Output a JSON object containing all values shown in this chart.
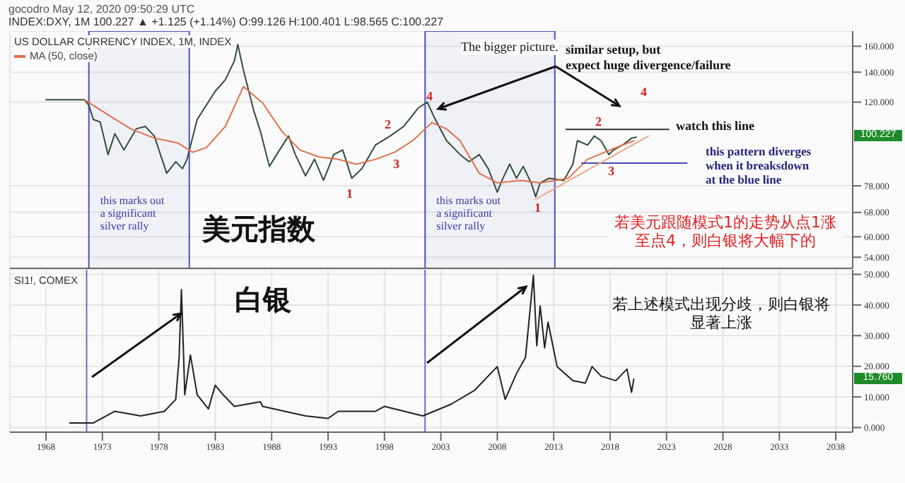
{
  "chart_data": [
    {
      "type": "line",
      "title": "US DOLLAR CURRENCY INDEX, 1M, INDEX",
      "log": "y",
      "grid": true,
      "legend": "top left",
      "tick_labels": "y",
      "xlim": [
        1964.8,
        2039.5
      ],
      "xticks": [
        1968,
        1973,
        1978,
        1983,
        1988,
        1993,
        1998,
        2003,
        2008,
        2013,
        2018,
        2023,
        2028,
        2033,
        2038
      ],
      "ylim": [
        51,
        173
      ],
      "yticks": [
        {
          "value": 54,
          "label": "54.000"
        },
        {
          "value": 60,
          "label": "60.000"
        },
        {
          "value": 68,
          "label": "68.000"
        },
        {
          "value": 78,
          "label": "78.000"
        },
        {
          "value": 120,
          "label": "120.000"
        },
        {
          "value": 140,
          "label": "140.000"
        },
        {
          "value": 160,
          "label": "160.000"
        }
      ],
      "series": [
        {
          "color": "#2f4f3a",
          "x": [
            1968.0,
            1971.4,
            1971.8,
            1972.2,
            1972.8,
            1973.5,
            1974.1,
            1974.9,
            1976.0,
            1976.8,
            1977.6,
            1978.7,
            1979.5,
            1980.1,
            1980.5,
            1981.4,
            1982.2,
            1983.0,
            1983.9,
            1984.7,
            1985.0,
            1985.5,
            1986.4,
            1987.0,
            1987.8,
            1988.7,
            1989.5,
            1990.1,
            1991.0,
            1991.8,
            1992.6,
            1993.5,
            1994.3,
            1995.1,
            1996.0,
            1997.2,
            1998.5,
            1999.7,
            2001.0,
            2001.8,
            2002.4,
            2003.5,
            2004.7,
            2005.5,
            2006.4,
            2007.2,
            2008.0,
            2008.5,
            2009.1,
            2009.7,
            2010.3,
            2011.0,
            2011.4,
            2011.8,
            2012.6,
            2013.9,
            2014.7,
            2015.1,
            2016.0,
            2016.6,
            2017.2,
            2017.9,
            2018.3,
            2019.1,
            2019.9,
            2020.3
          ],
          "values": [
            121.5,
            121.5,
            118,
            109.7,
            108.4,
            91.6,
            102,
            93.8,
            104.6,
            105.9,
            100.8,
            83.2,
            88.3,
            85.2,
            89.4,
            109.7,
            118,
            126.9,
            134.7,
            148.4,
            161.4,
            141.4,
            115.2,
            103.3,
            86.2,
            93.8,
            100.8,
            91.6,
            82.1,
            89.4,
            80.2,
            91.6,
            93.8,
            81.1,
            85.2,
            96.2,
            100.8,
            105.9,
            116.5,
            120,
            111.1,
            98.4,
            91.6,
            88.3,
            91.6,
            85.2,
            75.5,
            81.1,
            87.2,
            81.1,
            86.2,
            79.2,
            73.7,
            79.2,
            81.1,
            80.2,
            87.2,
            98.4,
            96.2,
            100.8,
            98.4,
            91.6,
            93.8,
            96.2,
            99.7,
            100.2
          ]
        },
        {
          "name": "MA (50, close)",
          "color": "#e0704a",
          "x": [
            1971.4,
            1973.5,
            1975.5,
            1977.6,
            1979.7,
            1981.0,
            1982.2,
            1983.9,
            1985.5,
            1987.2,
            1988.9,
            1990.5,
            1992.2,
            1993.9,
            1995.5,
            1997.2,
            1998.9,
            2000.5,
            2002.2,
            2003.5,
            2004.7,
            2006.4,
            2008.0,
            2010.1,
            2011.8,
            2014.3,
            2016.0,
            2018.0,
            2020.1
          ],
          "values": [
            121.5,
            112.4,
            104.6,
            99.7,
            97.2,
            92.7,
            94.9,
            105.9,
            130,
            119.5,
            103.3,
            93.8,
            90.5,
            89.4,
            87.2,
            89.4,
            92.7,
            98.4,
            108,
            104.6,
            98.4,
            83.2,
            79.2,
            80.2,
            79.2,
            81.1,
            89.4,
            93.8,
            98.4
          ]
        },
        {
          "color": "#333333",
          "x": [
            2014.1,
            2023.2
          ],
          "values": [
            104.3,
            104.3
          ]
        },
        {
          "color": "#4848b8",
          "x": [
            2015.5,
            2024.8
          ],
          "values": [
            87.7,
            87.7
          ]
        },
        {
          "color": "#e8a888",
          "x": [
            2011.4,
            2021.4
          ],
          "values": [
            72.8,
            100.8
          ]
        }
      ],
      "bands": [
        {
          "axis": "x",
          "from": 1971.8,
          "to": 1980.7,
          "label": "this marks out\na significant\nsilver rally",
          "color": "#5050c8"
        },
        {
          "axis": "x",
          "from": 2001.6,
          "to": 2013.1,
          "label": "this marks out\na significant\nsilver rally",
          "color": "#5050c8"
        }
      ],
      "annotations": [
        "gocodro May 12, 2020 09:50:29 UTC",
        "INDEX:DXY, 1M 100.227 ▲ +1.125 (+1.14%) O:99.126 H:100.401 L:98.565 C:100.227",
        "The bigger picture.",
        "similar setup, but\nexpect huge divergence/failure",
        "美元指数",
        "若美元跟随模式1的走势从点1涨至点4，则白银将大幅下的",
        "watch this line",
        "this pattern diverges\nwhen it breaksdown\nat the blue line",
        "1",
        "2",
        "3",
        {
          "text": "4",
          "x": 2002,
          "y": 124
        },
        "1",
        "2",
        "3",
        "4",
        "100.227"
      ]
    },
    {
      "type": "line",
      "title": "SI1!, COMEX",
      "grid": true,
      "xlim": [
        1964.8,
        2039.5
      ],
      "xticks": [
        1968,
        1973,
        1978,
        1983,
        1988,
        1993,
        1998,
        2003,
        2008,
        2013,
        2018,
        2023,
        2028,
        2033,
        2038
      ],
      "ylim": [
        -1.5,
        51.5
      ],
      "yticks": [
        {
          "value": 0,
          "label": "0.000"
        },
        {
          "value": 10,
          "label": "10.000"
        },
        {
          "value": 20,
          "label": "20.000"
        },
        {
          "value": 30,
          "label": "30.000"
        },
        {
          "value": 40,
          "label": "40.000"
        },
        {
          "value": 50,
          "label": "50.000"
        }
      ],
      "series": [
        {
          "color": "#222222",
          "x": [
            1970.1,
            1972.2,
            1974.1,
            1976.4,
            1978.5,
            1979.5,
            1979.8,
            1980.0,
            1980.2,
            1980.3,
            1980.8,
            1981.4,
            1982.4,
            1983.0,
            1983.7,
            1984.7,
            1987.0,
            1987.2,
            1991.0,
            1993.0,
            1993.9,
            1997.2,
            1998.0,
            2001.4,
            2003.9,
            2006.0,
            2008.0,
            2008.7,
            2009.7,
            2010.5,
            2011.2,
            2011.5,
            2011.8,
            2012.2,
            2012.5,
            2013.3,
            2014.7,
            2015.8,
            2016.4,
            2017.2,
            2018.5,
            2019.5,
            2019.9,
            2020.1
          ],
          "values": [
            1.5,
            1.5,
            5.3,
            3.8,
            5.3,
            9.2,
            22.9,
            45,
            22.9,
            10.7,
            23.7,
            10.7,
            6.1,
            13.8,
            10.7,
            6.9,
            8.4,
            6.9,
            3.8,
            3.0,
            5.3,
            5.3,
            6.9,
            3.8,
            7.6,
            12.2,
            19.9,
            9.2,
            17.6,
            22.9,
            49.7,
            26.7,
            39.7,
            26,
            34.4,
            19.9,
            15.3,
            14.5,
            19.9,
            16.8,
            15.3,
            19.1,
            11.5,
            15.8
          ]
        }
      ],
      "ref_lines": [
        {
          "axis": "x",
          "value": 1971.6,
          "color": "#6a6ad0"
        },
        {
          "axis": "x",
          "value": 2001.6,
          "color": "#6a6ad0"
        }
      ],
      "annotations": [
        "白银",
        "若上述模式出现分歧，则白银将显著上涨",
        "15.760"
      ]
    }
  ]
}
